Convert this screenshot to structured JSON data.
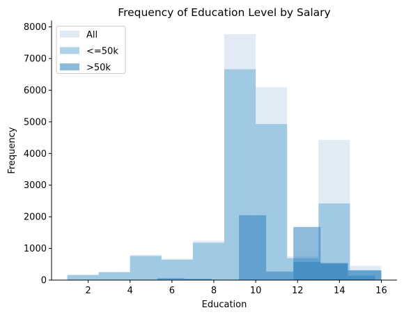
{
  "chart_data": {
    "type": "bar",
    "title": "Frequency of Education Level by Salary",
    "xlabel": "Education",
    "ylabel": "Frequency",
    "xlim": [
      0.25,
      16.75
    ],
    "ylim": [
      0,
      8200
    ],
    "xticks": [
      "2",
      "4",
      "6",
      "8",
      "10",
      "12",
      "14",
      "16"
    ],
    "yticks": [
      "0",
      "1000",
      "2000",
      "3000",
      "4000",
      "5000",
      "6000",
      "7000",
      "8000"
    ],
    "grid": false,
    "legend_position": "top-left",
    "series": [
      {
        "name": "All",
        "color": "#c6dbef",
        "opacity": 0.55,
        "bins": [
          {
            "x0": 1.0,
            "x1": 2.5,
            "value": 170
          },
          {
            "x0": 2.5,
            "x1": 4.0,
            "value": 260
          },
          {
            "x0": 4.0,
            "x1": 5.5,
            "value": 800
          },
          {
            "x0": 5.5,
            "x1": 7.0,
            "value": 680
          },
          {
            "x0": 7.0,
            "x1": 8.5,
            "value": 1240
          },
          {
            "x0": 8.5,
            "x1": 10.0,
            "value": 7770
          },
          {
            "x0": 10.0,
            "x1": 11.5,
            "value": 6090
          },
          {
            "x0": 11.5,
            "x1": 13.0,
            "value": 750
          },
          {
            "x0": 13.0,
            "x1": 14.5,
            "value": 4430
          },
          {
            "x0": 14.5,
            "x1": 16.0,
            "value": 450
          }
        ]
      },
      {
        "name": "<=50k",
        "color": "#6baed6",
        "opacity": 0.55,
        "bins": [
          {
            "x0": 1.0,
            "x1": 2.5,
            "value": 160
          },
          {
            "x0": 2.5,
            "x1": 4.0,
            "value": 250
          },
          {
            "x0": 4.0,
            "x1": 5.5,
            "value": 760
          },
          {
            "x0": 5.5,
            "x1": 7.0,
            "value": 640
          },
          {
            "x0": 7.0,
            "x1": 8.5,
            "value": 1180
          },
          {
            "x0": 8.5,
            "x1": 10.0,
            "value": 6660
          },
          {
            "x0": 10.0,
            "x1": 11.5,
            "value": 4930
          },
          {
            "x0": 11.5,
            "x1": 13.0,
            "value": 690
          },
          {
            "x0": 13.0,
            "x1": 14.5,
            "value": 2420
          },
          {
            "x0": 14.5,
            "x1": 16.0,
            "value": 300
          }
        ]
      },
      {
        "name": ">50k",
        "color": "#3182bd",
        "opacity": 0.55,
        "bins": [
          {
            "x0": 1.0,
            "x1": 2.5,
            "value": 0
          },
          {
            "x0": 2.5,
            "x1": 4.0,
            "value": 0
          },
          {
            "x0": 4.0,
            "x1": 5.3,
            "value": 0
          },
          {
            "x0": 5.3,
            "x1": 6.6,
            "value": 60
          },
          {
            "x0": 6.6,
            "x1": 7.9,
            "value": 40
          },
          {
            "x0": 7.9,
            "x1": 9.2,
            "value": 0
          },
          {
            "x0": 9.2,
            "x1": 10.5,
            "value": 2050
          },
          {
            "x0": 10.5,
            "x1": 11.8,
            "value": 270
          },
          {
            "x0": 11.8,
            "x1": 13.1,
            "value": 570
          },
          {
            "x0": 13.1,
            "x1": 14.4,
            "value": 540
          },
          {
            "x0": 14.4,
            "x1": 15.7,
            "value": 140
          }
        ]
      },
      {
        "name": ">50k",
        "legend": false,
        "color": "#3182bd",
        "opacity": 0.55,
        "bins": [
          {
            "x0": 11.8,
            "x1": 13.1,
            "value": 1680
          },
          {
            "x0": 13.1,
            "x1": 14.4,
            "value": 520
          },
          {
            "x0": 14.4,
            "x1": 16.0,
            "value": 310
          }
        ]
      }
    ]
  }
}
